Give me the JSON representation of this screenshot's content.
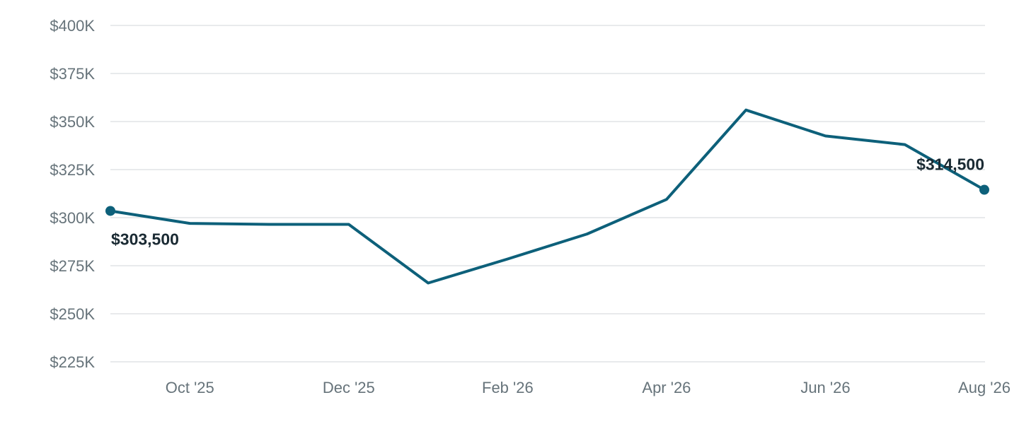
{
  "chart_data": {
    "type": "line",
    "title": "",
    "xlabel": "",
    "ylabel": "",
    "ylim": [
      225000,
      400000
    ],
    "yticks": [
      {
        "value": 400000,
        "label": "$400K"
      },
      {
        "value": 375000,
        "label": "$375K"
      },
      {
        "value": 350000,
        "label": "$350K"
      },
      {
        "value": 325000,
        "label": "$325K"
      },
      {
        "value": 300000,
        "label": "$300K"
      },
      {
        "value": 275000,
        "label": "$275K"
      },
      {
        "value": 250000,
        "label": "$250K"
      },
      {
        "value": 225000,
        "label": "$225K"
      }
    ],
    "xticks": [
      {
        "date": "2025-10",
        "label": "Oct '25"
      },
      {
        "date": "2025-12",
        "label": "Dec '25"
      },
      {
        "date": "2026-02",
        "label": "Feb '26"
      },
      {
        "date": "2026-04",
        "label": "Apr '26"
      },
      {
        "date": "2026-06",
        "label": "Jun '26"
      },
      {
        "date": "2026-08",
        "label": "Aug '26"
      }
    ],
    "x": [
      "2025-09",
      "2025-10",
      "2025-11",
      "2025-12",
      "2026-01",
      "2026-02",
      "2026-03",
      "2026-04",
      "2026-05",
      "2026-06",
      "2026-07",
      "2026-08"
    ],
    "series": [
      {
        "values": [
          303500,
          297000,
          296500,
          296500,
          266000,
          278500,
          291500,
          309500,
          356000,
          342500,
          338000,
          314500
        ]
      }
    ],
    "annotations": [
      {
        "index": 0,
        "label": "$303,500"
      },
      {
        "index": 11,
        "label": "$314,500"
      }
    ],
    "grid": true,
    "legend": "none",
    "line_color": "#0d607a"
  }
}
